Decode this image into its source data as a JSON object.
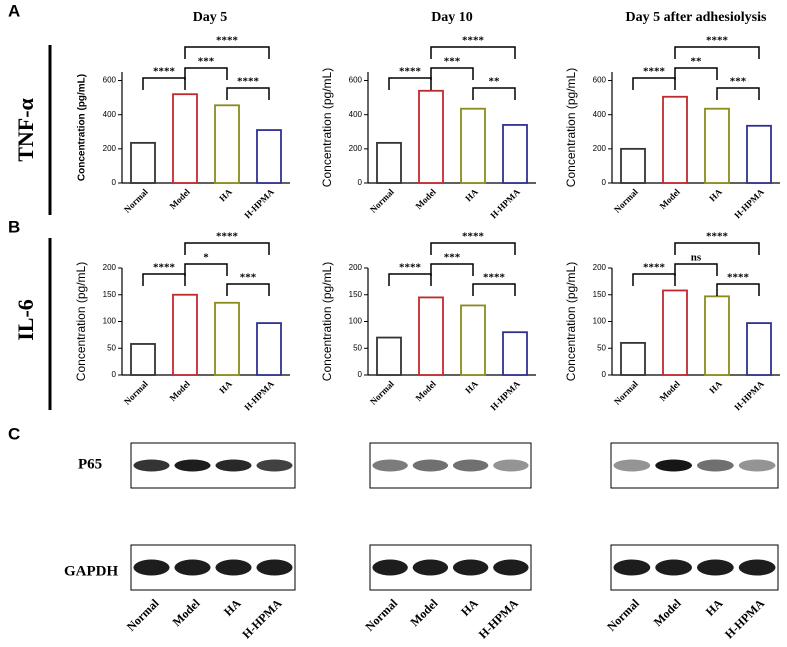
{
  "panel_labels": [
    "A",
    "B",
    "C"
  ],
  "row_labels": [
    "TNF-α",
    "IL-6"
  ],
  "column_titles": [
    "Day 5",
    "Day 10",
    "Day 5 after adhesiolysis"
  ],
  "chart_data": [
    {
      "type": "bar",
      "ylabel": "Concentration (pg/mL)",
      "categories": [
        "Normal",
        "Model",
        "HA",
        "H-HPMA"
      ],
      "values": [
        235,
        520,
        455,
        310
      ],
      "colors": [
        "#333333",
        "#c0282d",
        "#8b8b1c",
        "#2e3192"
      ],
      "ylim": [
        0,
        650
      ],
      "yticks": [
        0,
        200,
        400,
        600
      ],
      "comparisons": [
        {
          "groups": [
            "Normal",
            "Model"
          ],
          "label": "****"
        },
        {
          "groups": [
            "Model",
            "HA"
          ],
          "label": "***"
        },
        {
          "groups": [
            "HA",
            "H-HPMA"
          ],
          "label": "****"
        },
        {
          "groups": [
            "Model",
            "H-HPMA"
          ],
          "label": "****"
        }
      ]
    },
    {
      "type": "bar",
      "ylabel": "Concentration (pg/mL)",
      "categories": [
        "Normal",
        "Model",
        "HA",
        "H-HPMA"
      ],
      "values": [
        235,
        540,
        435,
        340
      ],
      "colors": [
        "#333333",
        "#c0282d",
        "#8b8b1c",
        "#2e3192"
      ],
      "ylim": [
        0,
        650
      ],
      "yticks": [
        0,
        200,
        400,
        600
      ],
      "comparisons": [
        {
          "groups": [
            "Normal",
            "Model"
          ],
          "label": "****"
        },
        {
          "groups": [
            "Model",
            "HA"
          ],
          "label": "***"
        },
        {
          "groups": [
            "HA",
            "H-HPMA"
          ],
          "label": "**"
        },
        {
          "groups": [
            "Model",
            "H-HPMA"
          ],
          "label": "****"
        }
      ]
    },
    {
      "type": "bar",
      "ylabel": "Concentration (pg/mL)",
      "categories": [
        "Normal",
        "Model",
        "HA",
        "H-HPMA"
      ],
      "values": [
        200,
        505,
        435,
        335
      ],
      "colors": [
        "#333333",
        "#c0282d",
        "#8b8b1c",
        "#2e3192"
      ],
      "ylim": [
        0,
        650
      ],
      "yticks": [
        0,
        200,
        400,
        600
      ],
      "comparisons": [
        {
          "groups": [
            "Normal",
            "Model"
          ],
          "label": "****"
        },
        {
          "groups": [
            "Model",
            "HA"
          ],
          "label": "**"
        },
        {
          "groups": [
            "HA",
            "H-HPMA"
          ],
          "label": "***"
        },
        {
          "groups": [
            "Model",
            "H-HPMA"
          ],
          "label": "****"
        }
      ]
    },
    {
      "type": "bar",
      "ylabel": "Concentration (pg/mL)",
      "categories": [
        "Normal",
        "Model",
        "HA",
        "H-HPMA"
      ],
      "values": [
        58,
        150,
        135,
        97
      ],
      "colors": [
        "#333333",
        "#c0282d",
        "#8b8b1c",
        "#2e3192"
      ],
      "ylim": [
        0,
        200
      ],
      "yticks": [
        0,
        50,
        100,
        150,
        200
      ],
      "comparisons": [
        {
          "groups": [
            "Normal",
            "Model"
          ],
          "label": "****"
        },
        {
          "groups": [
            "Model",
            "HA"
          ],
          "label": "*"
        },
        {
          "groups": [
            "HA",
            "H-HPMA"
          ],
          "label": "***"
        },
        {
          "groups": [
            "Model",
            "H-HPMA"
          ],
          "label": "****"
        }
      ]
    },
    {
      "type": "bar",
      "ylabel": "Concentration (pg/mL)",
      "categories": [
        "Normal",
        "Model",
        "HA",
        "H-HPMA"
      ],
      "values": [
        70,
        145,
        130,
        80
      ],
      "colors": [
        "#333333",
        "#c0282d",
        "#8b8b1c",
        "#2e3192"
      ],
      "ylim": [
        0,
        200
      ],
      "yticks": [
        0,
        50,
        100,
        150,
        200
      ],
      "comparisons": [
        {
          "groups": [
            "Normal",
            "Model"
          ],
          "label": "****"
        },
        {
          "groups": [
            "Model",
            "HA"
          ],
          "label": "***"
        },
        {
          "groups": [
            "HA",
            "H-HPMA"
          ],
          "label": "****"
        },
        {
          "groups": [
            "Model",
            "H-HPMA"
          ],
          "label": "****"
        }
      ]
    },
    {
      "type": "bar",
      "ylabel": "Concentration (pg/mL)",
      "categories": [
        "Normal",
        "Model",
        "HA",
        "H-HPMA"
      ],
      "values": [
        60,
        158,
        147,
        97
      ],
      "colors": [
        "#333333",
        "#c0282d",
        "#8b8b1c",
        "#2e3192"
      ],
      "ylim": [
        0,
        200
      ],
      "yticks": [
        0,
        50,
        100,
        150,
        200
      ],
      "comparisons": [
        {
          "groups": [
            "Normal",
            "Model"
          ],
          "label": "****"
        },
        {
          "groups": [
            "Model",
            "HA"
          ],
          "label": "ns"
        },
        {
          "groups": [
            "HA",
            "H-HPMA"
          ],
          "label": "****"
        },
        {
          "groups": [
            "Model",
            "H-HPMA"
          ],
          "label": "****"
        }
      ]
    }
  ],
  "western_blot": {
    "rows": [
      "P65",
      "GAPDH"
    ],
    "panels": [
      {
        "lanes": [
          "Normal",
          "Model",
          "HA",
          "H-HPMA"
        ]
      },
      {
        "lanes": [
          "Normal",
          "Model",
          "HA",
          "H-HPMA"
        ]
      },
      {
        "lanes": [
          "Normal",
          "Model",
          "HA",
          "H-HPMA"
        ]
      }
    ]
  }
}
